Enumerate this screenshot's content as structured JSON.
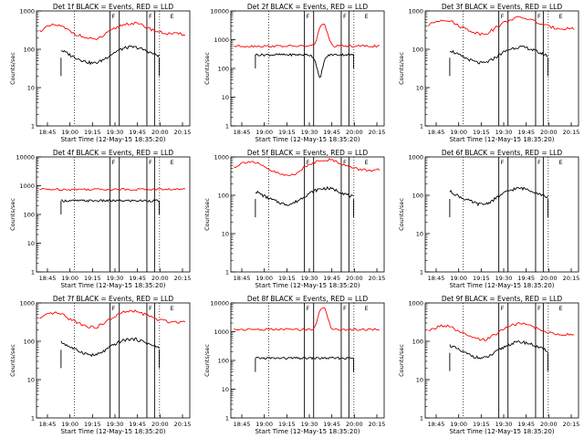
{
  "colors": {
    "events": "#000000",
    "lld": "#ff0000",
    "background": "#ffffff",
    "axis": "#000000"
  },
  "common": {
    "ylabel": "Counts/sec",
    "xlabel": "Start Time (12-May-15 18:35:20)",
    "xticks": [
      "18:45",
      "19:00",
      "19:15",
      "19:30",
      "19:45",
      "20:00",
      "20:15"
    ],
    "yticks": [
      "1",
      "10",
      "100",
      "1000",
      "10000"
    ],
    "marker_labels": [
      "F",
      "F",
      "E"
    ]
  },
  "chart_data": [
    {
      "id": "p1",
      "type": "line",
      "title": "Det 1f BLACK = Events, RED = LLD",
      "black_level": 60,
      "red_level": 250,
      "events_shape": "hump",
      "lld_shape": "hump",
      "yticks": [
        "1",
        "10",
        "100",
        "1000"
      ]
    },
    {
      "id": "p2",
      "type": "line",
      "title": "Det 2f BLACK = Events, RED = LLD",
      "black_level": 300,
      "red_level": 600,
      "events_shape": "dip",
      "lld_shape": "spike",
      "yticks": [
        "1",
        "10",
        "100",
        "1000",
        "10000"
      ]
    },
    {
      "id": "p3",
      "type": "line",
      "title": "Det 3f BLACK = Events, RED = LLD",
      "black_level": 60,
      "red_level": 350,
      "events_shape": "hump",
      "lld_shape": "hump",
      "yticks": [
        "1",
        "10",
        "100",
        "1000"
      ]
    },
    {
      "id": "p4",
      "type": "line",
      "title": "Det 4f BLACK = Events, RED = LLD",
      "black_level": 300,
      "red_level": 750,
      "events_shape": "flat",
      "lld_shape": "flat",
      "yticks": [
        "1",
        "10",
        "100",
        "1000",
        "10000"
      ]
    },
    {
      "id": "p5",
      "type": "line",
      "title": "Det 5f BLACK = Events, RED = LLD",
      "black_level": 80,
      "red_level": 450,
      "events_shape": "hump",
      "lld_shape": "hump",
      "yticks": [
        "1",
        "10",
        "100",
        "1000"
      ]
    },
    {
      "id": "p6",
      "type": "line",
      "title": "Det 6f BLACK = Events, RED = LLD",
      "black_level": 80,
      "red_level": null,
      "events_shape": "hump",
      "lld_shape": "none",
      "yticks": [
        "1",
        "10",
        "100",
        "1000"
      ]
    },
    {
      "id": "p7",
      "type": "line",
      "title": "Det 7f BLACK = Events, RED = LLD",
      "black_level": 60,
      "red_level": 320,
      "events_shape": "hump",
      "lld_shape": "hump",
      "yticks": [
        "1",
        "10",
        "100",
        "1000"
      ]
    },
    {
      "id": "p8",
      "type": "line",
      "title": "Det 8f BLACK = Events, RED = LLD",
      "black_level": 120,
      "red_level": 1200,
      "events_shape": "flat",
      "lld_shape": "spike",
      "yticks": [
        "1",
        "10",
        "100",
        "1000",
        "10000"
      ]
    },
    {
      "id": "p9",
      "type": "line",
      "title": "Det 9f BLACK = Events, RED = LLD",
      "black_level": 50,
      "red_level": 150,
      "events_shape": "hump",
      "lld_shape": "hump",
      "yticks": [
        "1",
        "10",
        "100",
        "1000"
      ]
    }
  ]
}
